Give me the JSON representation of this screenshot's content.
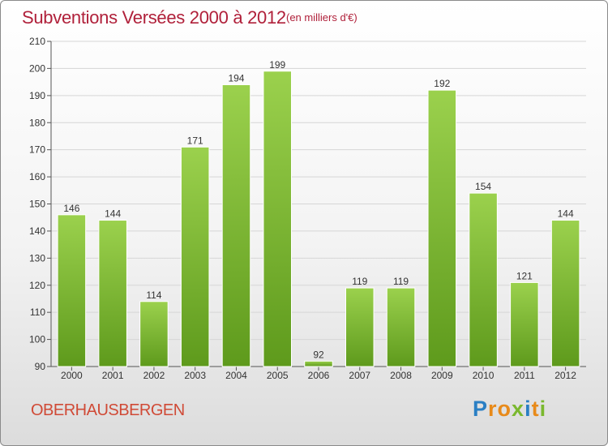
{
  "title": "Subventions Versées 2000 à 2012",
  "subtitle": "(en milliers d'€)",
  "commune": "OBERHAUSBERGEN",
  "logo": {
    "text": "Proxiti",
    "letters": [
      "P",
      "r",
      "o",
      "x",
      "i",
      "t",
      "i"
    ],
    "colors": [
      "#2a7fc4",
      "#e88a1a",
      "#e88a1a",
      "#7ab82e",
      "#2a7fc4",
      "#e88a1a",
      "#7ab82e"
    ]
  },
  "colors": {
    "bar_light": "#9bd14d",
    "bar_dark": "#5e9a1c",
    "title": "#b0203a"
  },
  "chart_data": {
    "type": "bar",
    "title": "Subventions Versées 2000 à 2012",
    "subtitle": "(en milliers d'€)",
    "categories": [
      "2000",
      "2001",
      "2002",
      "2003",
      "2004",
      "2005",
      "2006",
      "2007",
      "2008",
      "2009",
      "2010",
      "2011",
      "2012"
    ],
    "values": [
      146,
      144,
      114,
      171,
      194,
      199,
      92,
      119,
      119,
      192,
      154,
      121,
      144
    ],
    "xlabel": "",
    "ylabel": "",
    "ylim": [
      90,
      210
    ],
    "yticks": [
      90,
      100,
      110,
      120,
      130,
      140,
      150,
      160,
      170,
      180,
      190,
      200,
      210
    ],
    "grid": true,
    "data_labels": true
  }
}
